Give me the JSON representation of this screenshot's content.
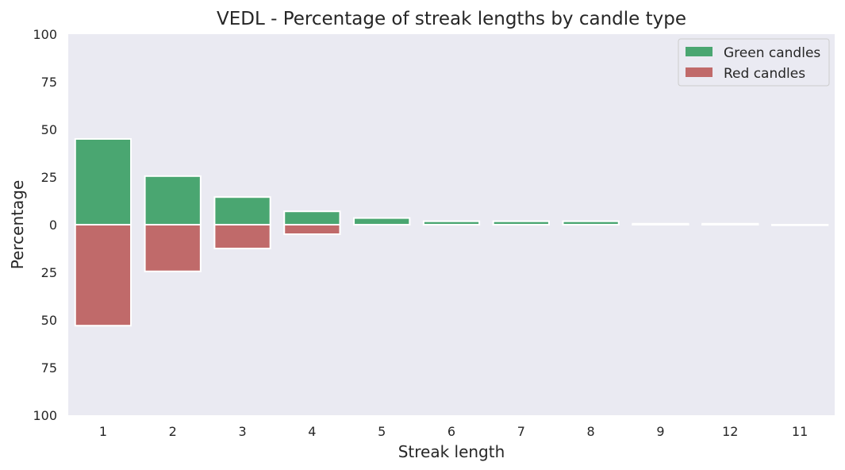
{
  "chart_data": {
    "type": "bar",
    "title": "VEDL - Percentage of streak lengths by candle type",
    "xlabel": "Streak length",
    "ylabel": "Percentage",
    "categories": [
      "1",
      "2",
      "3",
      "4",
      "5",
      "6",
      "7",
      "8",
      "9",
      "12",
      "11"
    ],
    "series": [
      {
        "name": "Green candles",
        "color": "#4aa671",
        "direction": "up",
        "values": [
          45,
          25.5,
          14.5,
          7,
          3.5,
          1.8,
          1.8,
          1.8,
          0.5,
          0.5,
          0
        ]
      },
      {
        "name": "Red candles",
        "color": "#c06a6a",
        "direction": "down",
        "values": [
          53,
          24.5,
          12.5,
          5,
          0,
          0,
          0,
          0,
          0,
          0,
          0.3
        ]
      }
    ],
    "ylim": [
      -100,
      100
    ],
    "yticks": [
      100,
      75,
      50,
      25,
      0,
      25,
      50,
      75,
      100
    ],
    "grid": false,
    "legend_position": "top-right",
    "background": "#eaeaf2"
  }
}
